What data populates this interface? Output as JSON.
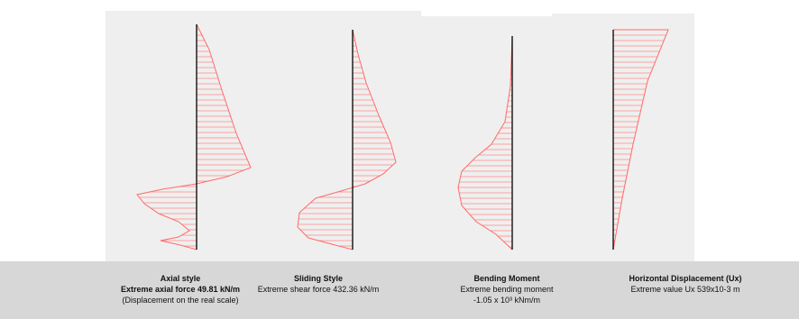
{
  "panels": [
    {
      "title": "Axial style",
      "line1": "Extreme axial force 49.81 kN/m",
      "line1_bold": true,
      "line2": "(Displacement on the real scale)",
      "line3": ""
    },
    {
      "title": "Sliding Style",
      "line1": "Extreme shear force 432.36 kN/m",
      "line1_bold": false,
      "line2": "",
      "line3": ""
    },
    {
      "title": "Bending Moment",
      "line1": "Extreme bending moment",
      "line1_bold": false,
      "line2": "-1.05 x 10³ kNm/m",
      "line3": ""
    },
    {
      "title": "Horizontal Displacement (Ux)",
      "line1": "Extreme value Ux 539x10-3 m",
      "line1_bold": false,
      "line2": "",
      "line3": ""
    }
  ],
  "colors": {
    "diagram_line": "#ff6b6b",
    "hatch": "#ff8a8a",
    "axis": "#000000",
    "panel_bg": "#efefef",
    "caption_bg": "#d7d7d7"
  }
}
